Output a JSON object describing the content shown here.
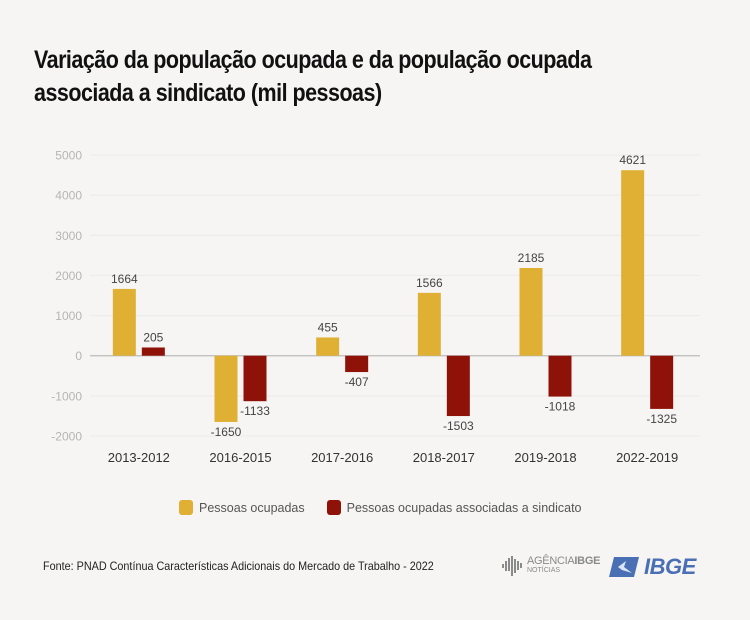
{
  "title_line1": "Variação da população ocupada e da população ocupada",
  "title_line2": "associada a sindicato (mil pessoas)",
  "source": "Fonte: PNAD Contínua Características Adicionais do Mercado de Trabalho - 2022",
  "logos": {
    "agencia_prefix": "AGÊNCIA",
    "agencia_brand": "IBGE",
    "agencia_sub": "NOTÍCIAS",
    "ibge": "IBGE"
  },
  "chart_data": {
    "type": "bar",
    "title": "Variação da população ocupada e da população ocupada associada a sindicato (mil pessoas)",
    "xlabel": "",
    "ylabel": "",
    "ylim": [
      -2000,
      5000
    ],
    "yticks": [
      5000,
      4000,
      3000,
      2000,
      1000,
      0,
      -1000,
      -2000
    ],
    "grid": true,
    "legend_position": "bottom",
    "categories": [
      "2013-2012",
      "2016-2015",
      "2017-2016",
      "2018-2017",
      "2019-2018",
      "2022-2019"
    ],
    "series": [
      {
        "name": "Pessoas ocupadas",
        "color": "#dfb034",
        "values": [
          1664,
          -1650,
          455,
          1566,
          2185,
          4621
        ]
      },
      {
        "name": "Pessoas ocupadas associadas a sindicato",
        "color": "#8f1208",
        "values": [
          205,
          -1133,
          -407,
          -1503,
          -1018,
          -1325
        ]
      }
    ]
  }
}
